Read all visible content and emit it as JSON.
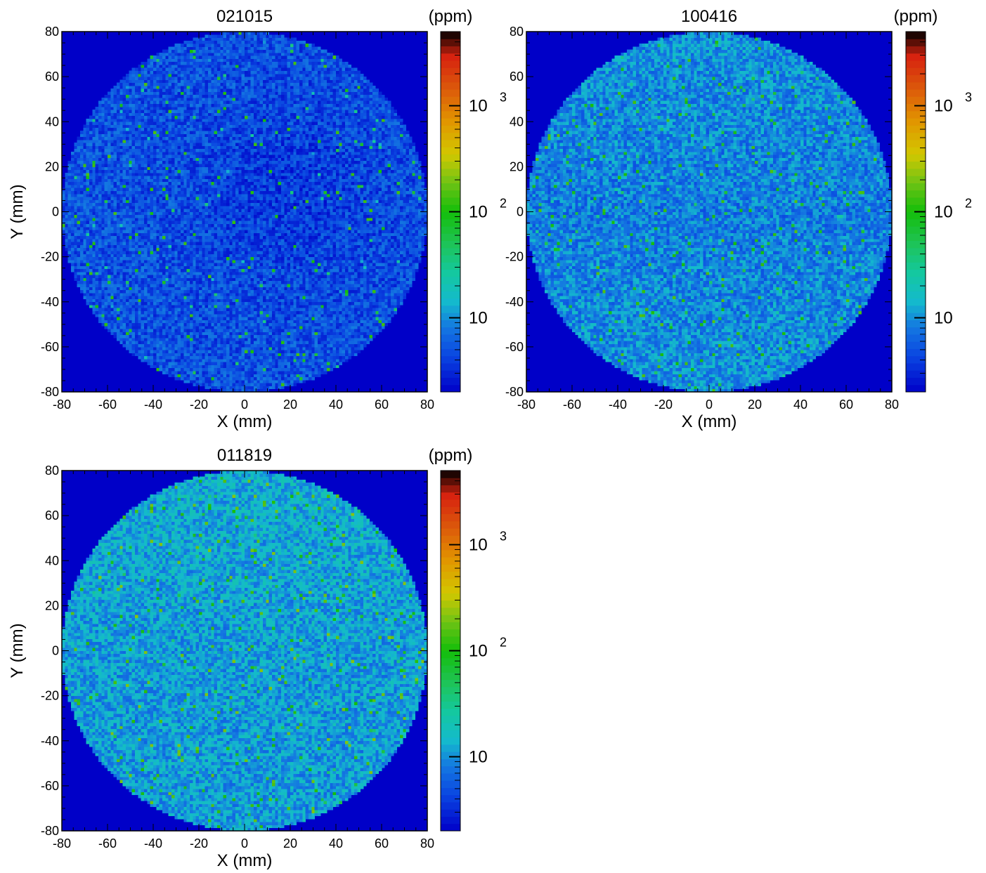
{
  "chart_data": [
    {
      "type": "heatmap",
      "title": "021015",
      "xlabel": "X (mm)",
      "ylabel": "Y (mm)",
      "xlim": [
        -80,
        80
      ],
      "ylim": [
        -80,
        80
      ],
      "xticks": [
        "-80",
        "-60",
        "-40",
        "-20",
        "0",
        "20",
        "40",
        "60",
        "80"
      ],
      "yticks": [
        "-80",
        "-60",
        "-40",
        "-20",
        "0",
        "20",
        "40",
        "60",
        "80"
      ],
      "colorbar": {
        "unit_label": "(ppm)",
        "scale": "log",
        "range": [
          2,
          5000
        ],
        "tick_labels": [
          {
            "value": 10,
            "base": "10",
            "exp": ""
          },
          {
            "value": 100,
            "base": "10",
            "exp": "2"
          },
          {
            "value": 1000,
            "base": "10",
            "exp": "3"
          }
        ]
      },
      "disk_radius_mm": 80,
      "background_value_ppm": 2,
      "typical_value_ppm": 5,
      "hotspot_max_ppm": 150,
      "hotspot_density": 0.025,
      "gradient": "uniform, darker blue toward right-center"
    },
    {
      "type": "heatmap",
      "title": "100416",
      "xlabel": "X (mm)",
      "ylabel": "",
      "xlim": [
        -80,
        80
      ],
      "ylim": [
        -80,
        80
      ],
      "xticks": [
        "-80",
        "-60",
        "-40",
        "-20",
        "0",
        "20",
        "40",
        "60",
        "80"
      ],
      "yticks": [
        "-80",
        "-60",
        "-40",
        "-20",
        "0",
        "20",
        "40",
        "60",
        "80"
      ],
      "colorbar": {
        "unit_label": "(ppm)",
        "scale": "log",
        "range": [
          2,
          5000
        ],
        "tick_labels": [
          {
            "value": 10,
            "base": "10",
            "exp": ""
          },
          {
            "value": 100,
            "base": "10",
            "exp": "2"
          },
          {
            "value": 1000,
            "base": "10",
            "exp": "3"
          }
        ]
      },
      "disk_radius_mm": 80,
      "background_value_ppm": 2,
      "typical_value_ppm": 8,
      "hotspot_max_ppm": 160,
      "hotspot_density": 0.03,
      "gradient": "cyan-blue, slightly higher at top and bottom-left"
    },
    {
      "type": "heatmap",
      "title": "011819",
      "xlabel": "X (mm)",
      "ylabel": "Y (mm)",
      "xlim": [
        -80,
        80
      ],
      "ylim": [
        -80,
        80
      ],
      "xticks": [
        "-80",
        "-60",
        "-40",
        "-20",
        "0",
        "20",
        "40",
        "60",
        "80"
      ],
      "yticks": [
        "-80",
        "-60",
        "-40",
        "-20",
        "0",
        "20",
        "40",
        "60",
        "80"
      ],
      "colorbar": {
        "unit_label": "(ppm)",
        "scale": "log",
        "range": [
          2,
          5000
        ],
        "tick_labels": [
          {
            "value": 10,
            "base": "10",
            "exp": ""
          },
          {
            "value": 100,
            "base": "10",
            "exp": "2"
          },
          {
            "value": 1000,
            "base": "10",
            "exp": "3"
          }
        ]
      },
      "disk_radius_mm": 80,
      "background_value_ppm": 2,
      "typical_value_ppm": 11,
      "hotspot_max_ppm": 220,
      "hotspot_density": 0.035,
      "gradient": "teal overall, highest toward top"
    }
  ]
}
